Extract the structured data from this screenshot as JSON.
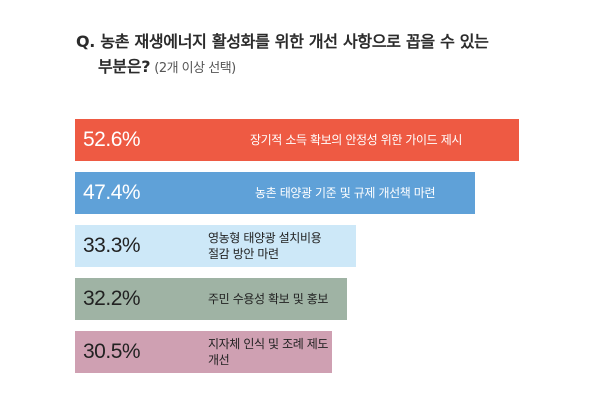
{
  "question": {
    "line1": "Q. 농촌 재생에너지 활성화를 위한 개선 사항으로 꼽을 수 있는",
    "line2": "부분은?",
    "note": "(2개 이상 선택)"
  },
  "chart_data": {
    "type": "bar",
    "orientation": "horizontal",
    "categories": [
      "장기적 소득 확보의 안정성 위한 가이드 제시",
      "농촌 태양광 기준 및 규제 개선책 마련",
      "영농형 태양광 설치비용\n절감 방안 마련",
      "주민 수용성 확보 및 홍보",
      "지자체 인식 및 조례 제도 개선"
    ],
    "values": [
      52.6,
      47.4,
      33.3,
      32.2,
      30.5
    ],
    "value_labels": [
      "52.6%",
      "47.4%",
      "33.3%",
      "32.2%",
      "30.5%"
    ],
    "unit": "%",
    "colors": [
      "#ee5a43",
      "#5fa1d8",
      "#cde8f8",
      "#9fb3a4",
      "#cfa0b2"
    ],
    "text_colors": [
      "#ffffff",
      "#ffffff",
      "#222222",
      "#222222",
      "#222222"
    ],
    "xlim": [
      0,
      52.6
    ],
    "grid": false,
    "legend": "none"
  }
}
